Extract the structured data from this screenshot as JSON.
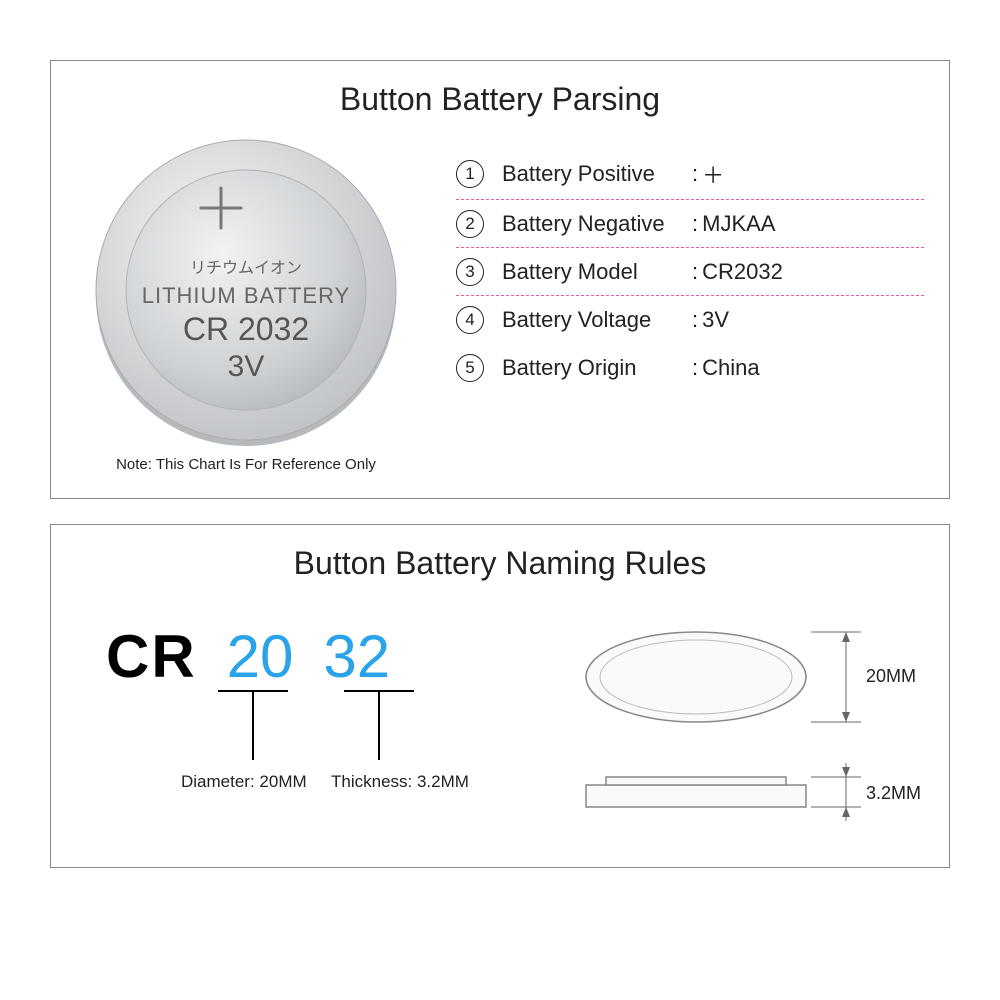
{
  "top": {
    "title": "Button Battery Parsing",
    "note": "Note: This Chart Is For Reference Only",
    "battery": {
      "jp_text": "リチウムイオン",
      "type_text": "LITHIUM BATTERY",
      "model_text": "CR 2032",
      "voltage_text": "3V",
      "fill_main": "#d6d8da",
      "fill_highlight": "#eef1f3",
      "fill_edge": "#bfc2c5",
      "text_color": "#555"
    },
    "specs": [
      {
        "n": "1",
        "label": "Battery Positive",
        "sep": ":",
        "value": "＋",
        "dashed": true
      },
      {
        "n": "2",
        "label": "Battery Negative",
        "sep": ":",
        "value": "MJKAA",
        "dashed": true
      },
      {
        "n": "3",
        "label": "Battery Model",
        "sep": ":",
        "value": "CR2032",
        "dashed": true
      },
      {
        "n": "4",
        "label": "Battery Voltage",
        "sep": ":",
        "value": "3V",
        "dashed": false
      },
      {
        "n": "5",
        "label": "Battery Origin",
        "sep": ":",
        "value": "China",
        "dashed": false
      }
    ],
    "dash_color": "#e85d9c"
  },
  "bottom": {
    "title": "Button Battery Naming Rules",
    "code": {
      "prefix": "CR",
      "diameter_code": "20",
      "thickness_code": "32",
      "diameter_caption": "Diameter: 20MM",
      "thickness_caption": "Thickness: 3.2MM",
      "code_color": "#2aa3e8"
    },
    "diagram": {
      "diameter_label": "20MM",
      "thickness_label": "3.2MM",
      "stroke": "#888",
      "fill": "#fafafa",
      "guide": "#666"
    }
  }
}
